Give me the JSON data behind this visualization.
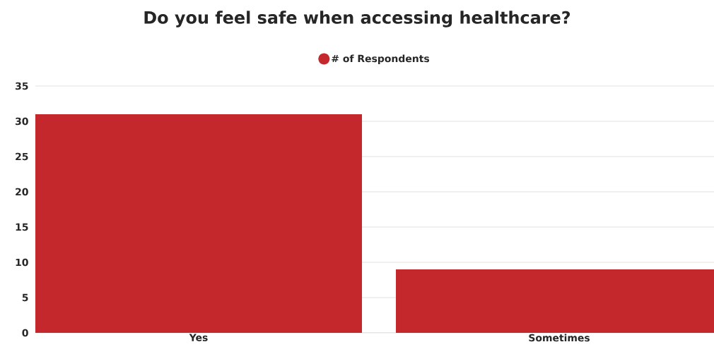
{
  "chart_data": {
    "type": "bar",
    "title": "Do you feel safe when accessing healthcare?",
    "categories": [
      "Yes",
      "Sometimes"
    ],
    "series": [
      {
        "name": "# of Respondents",
        "color": "#c4282c",
        "values": [
          31,
          9
        ]
      }
    ],
    "ylim": [
      0,
      35
    ],
    "yticks": [
      0,
      5,
      10,
      15,
      20,
      25,
      30,
      35
    ],
    "grid": "y",
    "legend": "top"
  }
}
